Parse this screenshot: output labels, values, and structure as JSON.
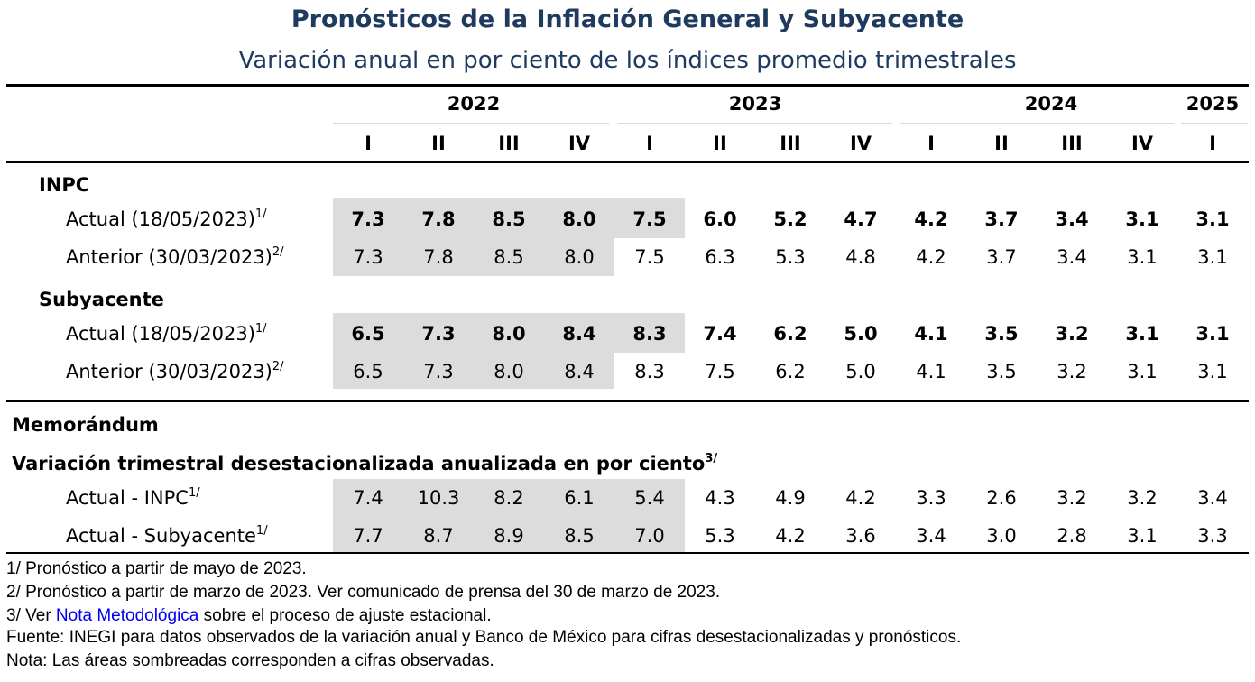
{
  "title": "Pronósticos de la Inflación General y Subyacente",
  "subtitle": "Variación anual en por ciento de los índices promedio trimestrales",
  "years": [
    "2022",
    "2023",
    "2024",
    "2025"
  ],
  "quarters": [
    "I",
    "II",
    "III",
    "IV",
    "I",
    "II",
    "III",
    "IV",
    "I",
    "II",
    "III",
    "IV",
    "I"
  ],
  "sections": {
    "inpc": "INPC",
    "subyacente": "Subyacente",
    "memorandum": "Memorándum",
    "variacion": "Variación trimestral desestacionalizada anualizada en por ciento",
    "variacion_sup": "3/"
  },
  "rows": [
    {
      "label": "Actual (18/05/2023)",
      "sup": "1/",
      "bold": true,
      "values": [
        "7.3",
        "7.8",
        "8.5",
        "8.0",
        "7.5",
        "6.0",
        "5.2",
        "4.7",
        "4.2",
        "3.7",
        "3.4",
        "3.1",
        "3.1"
      ]
    },
    {
      "label": "Anterior (30/03/2023)",
      "sup": "2/",
      "bold": false,
      "values": [
        "7.3",
        "7.8",
        "8.5",
        "8.0",
        "7.5",
        "6.3",
        "5.3",
        "4.8",
        "4.2",
        "3.7",
        "3.4",
        "3.1",
        "3.1"
      ]
    },
    {
      "label": "Actual (18/05/2023)",
      "sup": "1/",
      "bold": true,
      "values": [
        "6.5",
        "7.3",
        "8.0",
        "8.4",
        "8.3",
        "7.4",
        "6.2",
        "5.0",
        "4.1",
        "3.5",
        "3.2",
        "3.1",
        "3.1"
      ]
    },
    {
      "label": "Anterior (30/03/2023)",
      "sup": "2/",
      "bold": false,
      "values": [
        "6.5",
        "7.3",
        "8.0",
        "8.4",
        "8.3",
        "7.5",
        "6.2",
        "5.0",
        "4.1",
        "3.5",
        "3.2",
        "3.1",
        "3.1"
      ]
    },
    {
      "label": "Actual - INPC",
      "sup": "1/",
      "bold": false,
      "values": [
        "7.4",
        "10.3",
        "8.2",
        "6.1",
        "5.4",
        "4.3",
        "4.9",
        "4.2",
        "3.3",
        "2.6",
        "3.2",
        "3.2",
        "3.4"
      ]
    },
    {
      "label": "Actual - Subyacente",
      "sup": "1/",
      "bold": false,
      "values": [
        "7.7",
        "8.7",
        "8.9",
        "8.5",
        "7.0",
        "5.3",
        "4.2",
        "3.6",
        "3.4",
        "3.0",
        "2.8",
        "3.1",
        "3.3"
      ]
    }
  ],
  "footnotes": {
    "f1": "1/ Pronóstico a partir de mayo de 2023.",
    "f2": "2/ Pronóstico a partir de marzo de 2023. Ver comunicado de prensa del 30 de marzo de 2023.",
    "f3_pre": "3/ Ver ",
    "f3_link": "Nota Metodológica",
    "f3_post": " sobre el proceso de ajuste estacional.",
    "fuente": "Fuente: INEGI para datos observados de la variación anual y Banco de México para cifras desestacionalizadas y pronósticos.",
    "nota": "Nota: Las áreas sombreadas corresponden a cifras observadas."
  }
}
